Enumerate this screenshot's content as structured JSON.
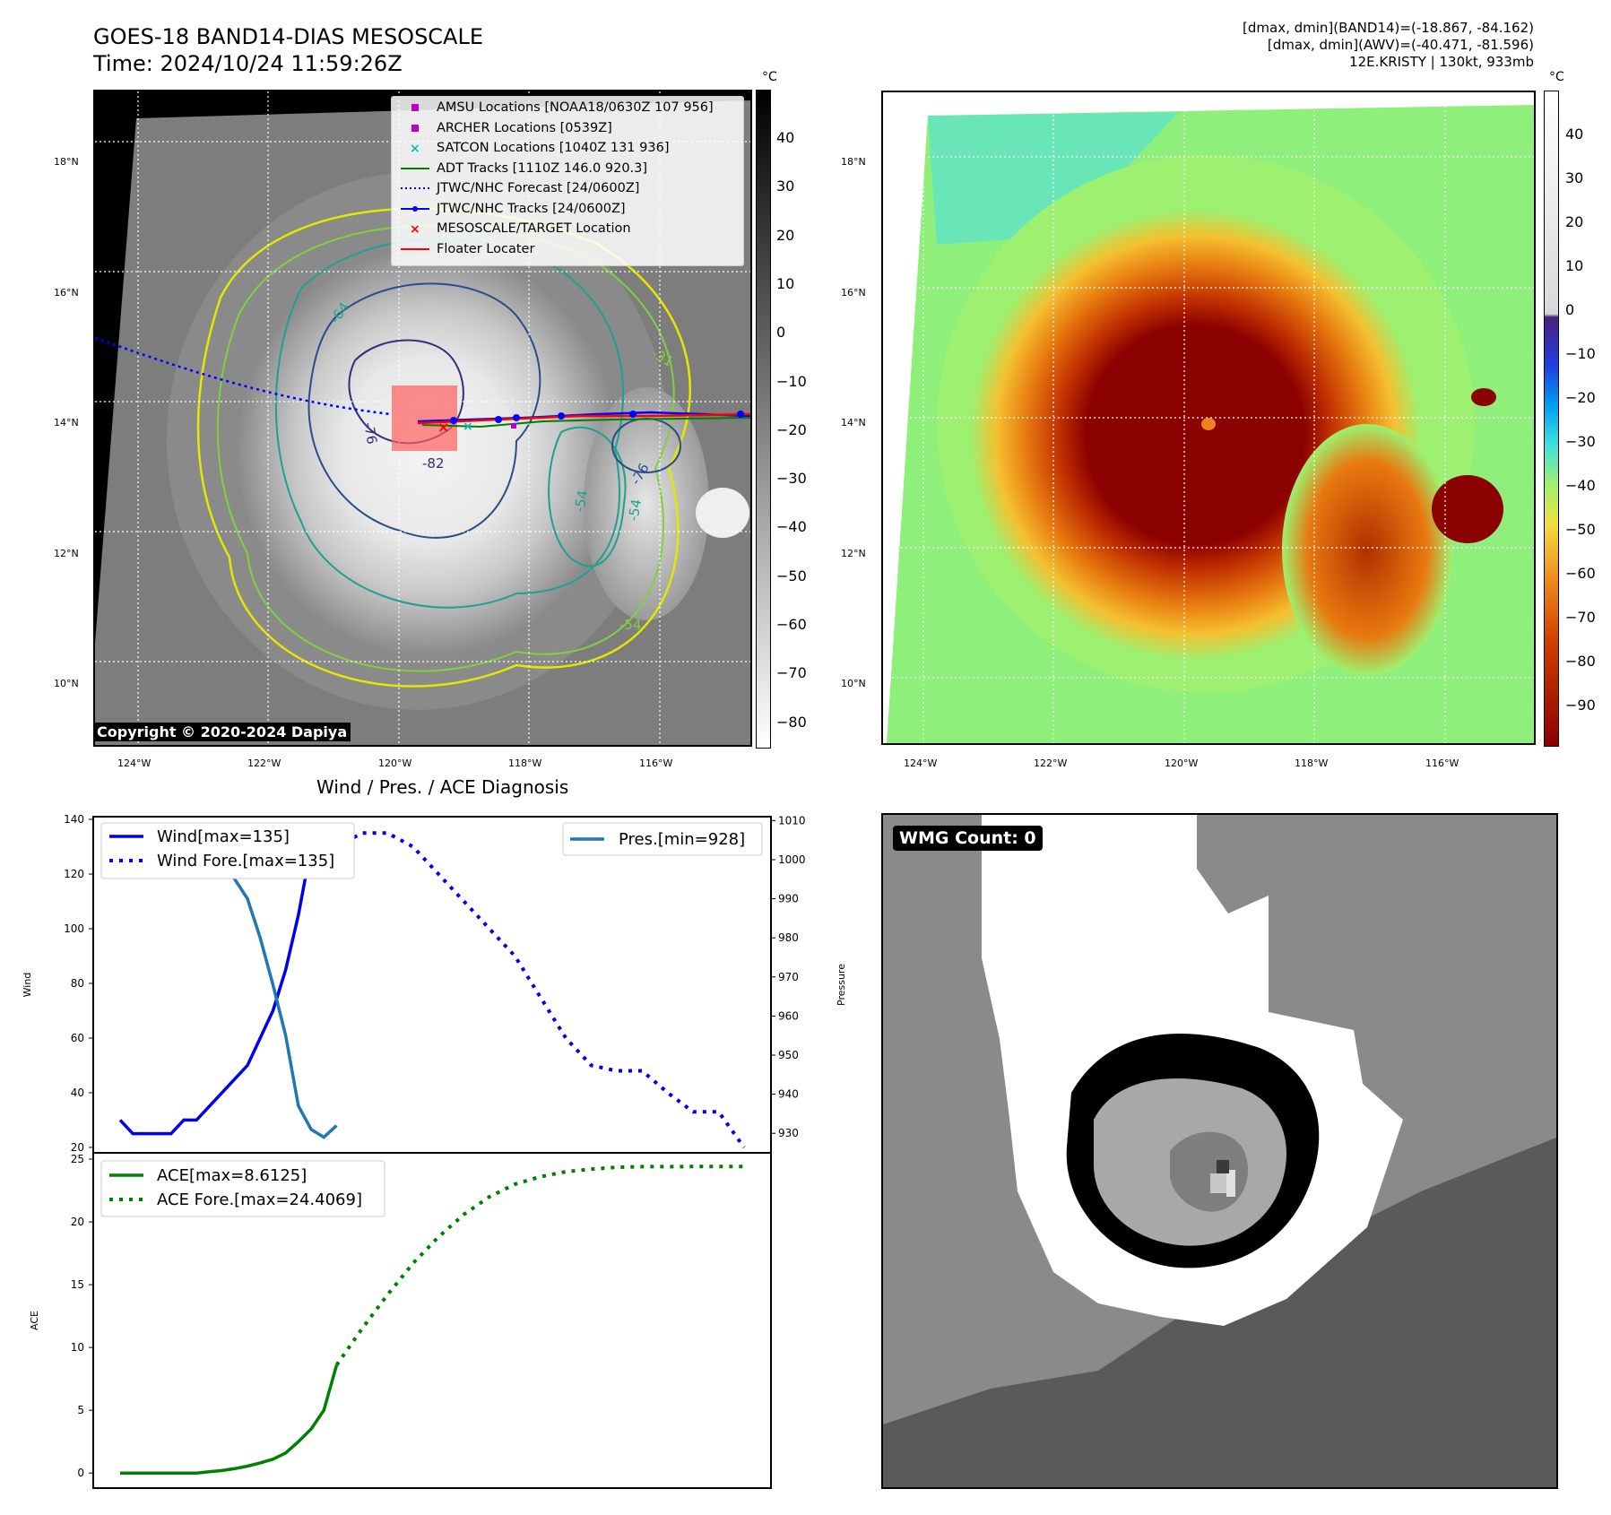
{
  "header": {
    "title_line1": "GOES-18 BAND14-DIAS MESOSCALE",
    "title_line2": "Time: 2024/10/24 11:59:26Z",
    "info_line1": "[dmax, dmin](BAND14)=(-18.867, -84.162)",
    "info_line2": "[dmax, dmin](AWV)=(-40.471, -81.596)",
    "info_line3": "12E.KRISTY | 130kt, 933mb"
  },
  "map_axes": {
    "lat_labels": [
      "18°N",
      "16°N",
      "14°N",
      "12°N",
      "10°N"
    ],
    "lon_labels": [
      "124°W",
      "122°W",
      "120°W",
      "118°W",
      "116°W"
    ]
  },
  "colorbar_left": {
    "unit": "°C",
    "ticks": [
      "40",
      "30",
      "20",
      "10",
      "0",
      "−10",
      "−20",
      "−30",
      "−40",
      "−50",
      "−60",
      "−70",
      "−80"
    ]
  },
  "colorbar_right": {
    "unit": "°C",
    "ticks": [
      "40",
      "30",
      "20",
      "10",
      "0",
      "−10",
      "−20",
      "−30",
      "−40",
      "−50",
      "−60",
      "−70",
      "−80",
      "−90"
    ]
  },
  "contour_labels": [
    "-64",
    "-76",
    "-82",
    "-54",
    "-54",
    "-54",
    "-31",
    "-76"
  ],
  "legend_left": {
    "items": [
      {
        "label": "AMSU Locations [NOAA18/0630Z 107 956]",
        "color": "#c000c0",
        "marker": "square"
      },
      {
        "label": "ARCHER Locations [0539Z]",
        "color": "#c000c0",
        "marker": "square"
      },
      {
        "label": "SATCON Locations [1040Z 131 936]",
        "color": "#00c0c0",
        "marker": "x"
      },
      {
        "label": "ADT Tracks [1110Z 146.0 920.3]",
        "color": "#008000",
        "marker": "line"
      },
      {
        "label": "JTWC/NHC Forecast [24/0600Z]",
        "color": "#0000ff",
        "marker": "dotted"
      },
      {
        "label": "JTWC/NHC Tracks [24/0600Z]",
        "color": "#0000ff",
        "marker": "line-dot"
      },
      {
        "label": "MESOSCALE/TARGET Location",
        "color": "#ff0000",
        "marker": "x"
      },
      {
        "label": "Floater Locater",
        "color": "#ff0000",
        "marker": "line"
      }
    ]
  },
  "copyright": "Copyright © 2020-2024 Dapiya",
  "wmg_label": "WMG Count: 0",
  "chart_data": [
    {
      "type": "line",
      "title": "Wind / Pres. / ACE Diagnosis",
      "ylabel": "Wind",
      "y2label": "Pressure",
      "ylim": [
        18,
        141
      ],
      "y2lim": [
        925,
        1011
      ],
      "yticks": [
        20,
        40,
        60,
        80,
        100,
        120,
        140
      ],
      "y2ticks": [
        930,
        940,
        950,
        960,
        970,
        980,
        990,
        1000,
        1010
      ],
      "series": [
        {
          "name": "Wind[max=135]",
          "axis": "left",
          "style": "solid",
          "color": "#0000ee",
          "x": [
            0,
            1,
            2,
            3,
            4,
            5,
            6,
            7,
            8,
            9,
            10,
            11,
            12,
            13,
            14,
            15,
            16,
            17
          ],
          "values": [
            30,
            25,
            25,
            25,
            25,
            30,
            30,
            35,
            40,
            45,
            50,
            60,
            70,
            85,
            105,
            130,
            135,
            130
          ]
        },
        {
          "name": "Wind Fore.[max=135]",
          "axis": "left",
          "style": "dotted",
          "color": "#0000ee",
          "x": [
            17,
            19,
            21,
            23,
            25,
            27,
            29,
            31,
            33,
            35,
            37,
            39,
            41,
            43,
            45,
            47,
            49
          ],
          "values": [
            130,
            135,
            135,
            130,
            120,
            110,
            100,
            90,
            75,
            60,
            50,
            48,
            48,
            40,
            33,
            33,
            20
          ]
        },
        {
          "name": "Pres.[min=928]",
          "axis": "right",
          "style": "solid",
          "color": "#1f77b4",
          "x": [
            0,
            1,
            2,
            3,
            4,
            5,
            6,
            7,
            8,
            9,
            10,
            11,
            12,
            13,
            14,
            15,
            16,
            17
          ],
          "values": [
            1003,
            1003,
            1003,
            1004,
            1004,
            1004,
            1003,
            1001,
            999,
            995,
            990,
            980,
            968,
            955,
            937,
            931,
            929,
            932
          ]
        }
      ]
    },
    {
      "type": "line",
      "ylabel": "ACE",
      "ylim": [
        -1.2,
        25.5
      ],
      "yticks": [
        0,
        5,
        10,
        15,
        20,
        25
      ],
      "series": [
        {
          "name": "ACE[max=8.6125]",
          "style": "solid",
          "color": "#008000",
          "x": [
            0,
            1,
            2,
            3,
            4,
            5,
            6,
            7,
            8,
            9,
            10,
            11,
            12,
            13,
            14,
            15,
            16,
            17
          ],
          "values": [
            0,
            0,
            0,
            0,
            0,
            0,
            0,
            0.1,
            0.2,
            0.35,
            0.55,
            0.8,
            1.1,
            1.6,
            2.5,
            3.5,
            5,
            8.6
          ]
        },
        {
          "name": "ACE Fore.[max=24.4069]",
          "style": "dotted",
          "color": "#008000",
          "x": [
            17,
            19,
            21,
            23,
            25,
            27,
            29,
            31,
            33,
            35,
            37,
            39,
            41,
            43,
            45,
            47,
            49
          ],
          "values": [
            8.6,
            11.5,
            14.2,
            16.7,
            18.8,
            20.6,
            22,
            23,
            23.6,
            24,
            24.2,
            24.35,
            24.4,
            24.4,
            24.41,
            24.41,
            24.41
          ]
        }
      ]
    }
  ]
}
